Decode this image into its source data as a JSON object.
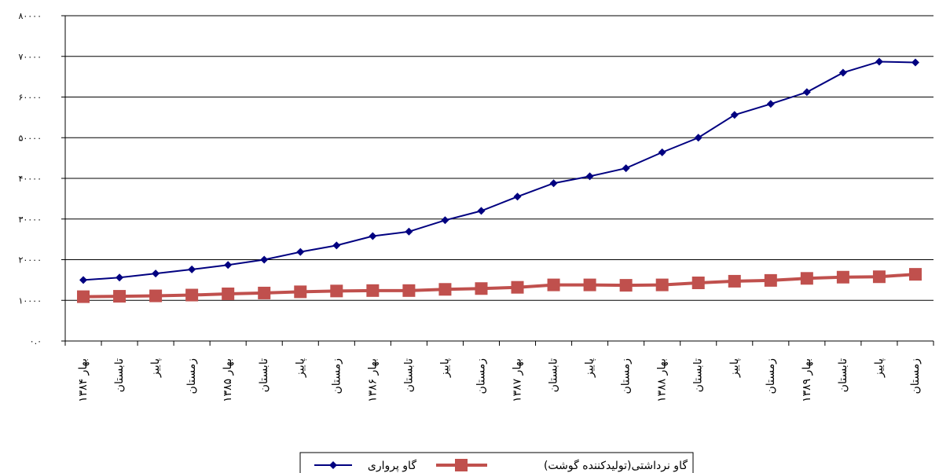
{
  "chart_data": {
    "type": "line",
    "categories": [
      "بهار ۱۳۸۴",
      "تابستان",
      "پاییز",
      "زمستان",
      "بهار ۱۳۸۵",
      "تابستان",
      "پاییز",
      "زمستان",
      "بهار ۱۳۸۶",
      "تابستان",
      "پاییز",
      "زمستان",
      "بهار ۱۳۸۷",
      "تابستان",
      "پاییز",
      "زمستان",
      "بهار ۱۳۸۸",
      "تابستان",
      "پاییز",
      "زمستان",
      "بهار ۱۳۸۹",
      "تابستان",
      "پاییز",
      "زمستان"
    ],
    "series": [
      {
        "name": "گاو پرواری",
        "color": "#000080",
        "marker": "diamond",
        "values": [
          15000,
          15600,
          16600,
          17600,
          18700,
          20000,
          21900,
          23500,
          25800,
          26900,
          29700,
          32000,
          35500,
          38800,
          40500,
          42500,
          46400,
          50000,
          55600,
          58300,
          61200,
          66000,
          68700,
          68500
        ]
      },
      {
        "name": "گاو نرداشتی(تولیدکننده گوشت)",
        "color": "#c0504d",
        "marker": "square",
        "values": [
          10900,
          11000,
          11100,
          11300,
          11600,
          11800,
          12100,
          12300,
          12400,
          12400,
          12700,
          12900,
          13200,
          13800,
          13800,
          13700,
          13800,
          14300,
          14700,
          14900,
          15400,
          15700,
          15800,
          16400
        ]
      }
    ],
    "ylim": [
      0,
      80000
    ],
    "yticks": [
      {
        "value": 0,
        "label": "۰.۰"
      },
      {
        "value": 10000,
        "label": "۱۰۰۰۰"
      },
      {
        "value": 20000,
        "label": "۲۰۰۰۰"
      },
      {
        "value": 30000,
        "label": "۳۰۰۰۰"
      },
      {
        "value": 40000,
        "label": "۴۰۰۰۰"
      },
      {
        "value": 50000,
        "label": "۵۰۰۰۰"
      },
      {
        "value": 60000,
        "label": "۶۰۰۰۰"
      },
      {
        "value": 70000,
        "label": "۷۰۰۰۰"
      },
      {
        "value": 80000,
        "label": "۸۰۰۰۰"
      }
    ],
    "grid": true,
    "legend_position": "bottom-right"
  }
}
